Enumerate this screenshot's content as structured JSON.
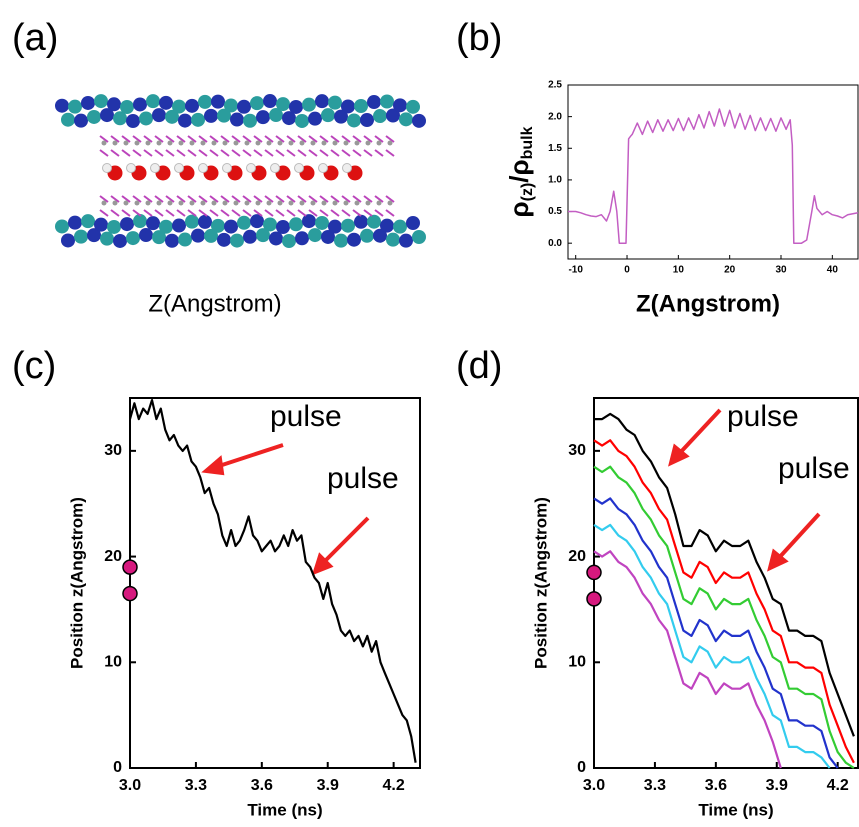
{
  "figure": {
    "panel_a": {
      "label": "(a)",
      "caption": "Z(Angstrom)"
    }
  },
  "chart_data": [
    {
      "type": "line",
      "panel_label": "(b)",
      "x_label": "Z(Angstrom)",
      "y_label": [
        "ρ",
        "(z)",
        "/ρ",
        "bulk"
      ],
      "color": "#c35ec3",
      "xlim": [
        -11.5,
        45
      ],
      "xticks": [
        -10,
        0,
        10,
        20,
        30,
        40
      ],
      "ylim": [
        -0.25,
        2.5
      ],
      "yticks": [
        {
          "value": 0,
          "label": "0.0"
        },
        0.5,
        {
          "value": 1,
          "label": "1.0"
        },
        1.5,
        {
          "value": 2,
          "label": "2.0"
        },
        2.5
      ],
      "x": [
        -11.5,
        -10,
        -9,
        -8,
        -7,
        -6,
        -5,
        -4,
        -3.3,
        -2.6,
        -2,
        -1.5,
        -0.2,
        0.3,
        0.8,
        1,
        2,
        3,
        4,
        5,
        6,
        7,
        8,
        9,
        10,
        11,
        12,
        13,
        14,
        15,
        16,
        17,
        18,
        19,
        20,
        21,
        22,
        23,
        24,
        25,
        26,
        27,
        28,
        29,
        30,
        31,
        31.8,
        32.2,
        32.5,
        34,
        35,
        36,
        36.5,
        37,
        38,
        39,
        40,
        41,
        42,
        43,
        45
      ],
      "values": [
        0.5,
        0.5,
        0.48,
        0.45,
        0.43,
        0.42,
        0.45,
        0.35,
        0.5,
        0.82,
        0.5,
        0,
        0,
        1.65,
        1.7,
        1.72,
        1.9,
        1.72,
        1.93,
        1.75,
        1.95,
        1.77,
        1.95,
        1.78,
        1.97,
        1.78,
        1.98,
        1.8,
        2.03,
        1.82,
        2.08,
        1.85,
        2.12,
        1.85,
        2.1,
        1.82,
        2.05,
        1.8,
        2.02,
        1.78,
        1.98,
        1.78,
        1.97,
        1.77,
        1.98,
        1.8,
        1.95,
        1.55,
        0,
        0,
        0.05,
        0.5,
        0.75,
        0.55,
        0.45,
        0.5,
        0.45,
        0.43,
        0.4,
        0.45,
        0.48
      ]
    },
    {
      "type": "line",
      "panel_label": "(c)",
      "x_label": "Time (ns)",
      "y_label": "Position z(Angstrom)",
      "color": "#000000",
      "xlim": [
        3,
        4.32
      ],
      "xticks": [
        {
          "value": 3,
          "label": "3.0"
        },
        3.3,
        3.6,
        3.9,
        4.2
      ],
      "ylim": [
        0,
        35
      ],
      "yticks": [
        0,
        10,
        20,
        30
      ],
      "markers": {
        "values": [
          19,
          16.5
        ],
        "color": "#d6197e"
      },
      "annotations": [
        "pulse",
        "pulse"
      ],
      "x": [
        3.0,
        3.02,
        3.04,
        3.06,
        3.08,
        3.1,
        3.12,
        3.14,
        3.16,
        3.18,
        3.2,
        3.22,
        3.24,
        3.26,
        3.28,
        3.3,
        3.32,
        3.34,
        3.36,
        3.38,
        3.4,
        3.42,
        3.44,
        3.46,
        3.48,
        3.5,
        3.52,
        3.54,
        3.56,
        3.58,
        3.6,
        3.62,
        3.64,
        3.66,
        3.68,
        3.7,
        3.72,
        3.74,
        3.76,
        3.78,
        3.8,
        3.82,
        3.84,
        3.86,
        3.88,
        3.9,
        3.92,
        3.94,
        3.96,
        3.98,
        4.0,
        4.02,
        4.04,
        4.06,
        4.08,
        4.1,
        4.12,
        4.14,
        4.16,
        4.18,
        4.2,
        4.22,
        4.24,
        4.26,
        4.28,
        4.3
      ],
      "values": [
        33,
        34.5,
        33,
        34,
        33.5,
        34.8,
        33,
        34,
        32,
        31,
        31.5,
        30.5,
        30,
        30.5,
        29,
        28.5,
        27.5,
        26,
        26.5,
        25,
        24,
        22,
        21,
        22.5,
        21,
        21.5,
        22.5,
        23.8,
        22,
        21.5,
        20.5,
        21,
        21.5,
        20.5,
        21,
        22,
        21,
        22.5,
        21.5,
        22,
        19.5,
        19,
        18,
        17.5,
        16,
        17.5,
        15.5,
        14.5,
        13,
        12.5,
        13,
        12,
        12.5,
        11.5,
        12.5,
        11,
        12,
        10,
        9,
        8,
        7,
        6,
        5,
        4.5,
        3,
        0.5
      ]
    },
    {
      "type": "line",
      "panel_label": "(d)",
      "x_label": "Time (ns)",
      "y_label": "Position z(Angstrom)",
      "xlim": [
        3,
        4.3
      ],
      "xticks": [
        {
          "value": 3,
          "label": "3.0"
        },
        3.3,
        3.6,
        3.9,
        4.2
      ],
      "ylim": [
        0,
        35
      ],
      "yticks": [
        0,
        10,
        20,
        30
      ],
      "markers": {
        "values": [
          18.5,
          16
        ],
        "color": "#d6197e"
      },
      "annotations": [
        "pulse",
        "pulse"
      ],
      "x": [
        3.0,
        3.04,
        3.08,
        3.12,
        3.16,
        3.2,
        3.24,
        3.28,
        3.32,
        3.36,
        3.4,
        3.44,
        3.48,
        3.52,
        3.56,
        3.6,
        3.64,
        3.68,
        3.72,
        3.76,
        3.8,
        3.84,
        3.88,
        3.92,
        3.96,
        4.0,
        4.04,
        4.08,
        4.12,
        4.16,
        4.2,
        4.24,
        4.28
      ],
      "series": [
        {
          "color": "#c044c0",
          "values": [
            20.5,
            20,
            20.5,
            19.5,
            19,
            18,
            16.5,
            15.5,
            14,
            13,
            10.5,
            8,
            7.5,
            9,
            8.5,
            7,
            8,
            7.5,
            7.5,
            8,
            6,
            4.5,
            2.5,
            0,
            null,
            null,
            null,
            null,
            null,
            null,
            null,
            null,
            null
          ]
        },
        {
          "color": "#33ccee",
          "values": [
            23,
            22.5,
            23,
            22,
            21.5,
            20.5,
            19,
            18,
            16.5,
            15.5,
            13,
            10.5,
            10,
            11.5,
            11,
            9.5,
            10.5,
            10,
            10,
            10.5,
            8.5,
            7,
            5,
            4.5,
            2,
            2,
            1.5,
            1.5,
            1,
            0,
            null,
            null,
            null
          ]
        },
        {
          "color": "#2233cc",
          "values": [
            25.5,
            25,
            25.5,
            24.5,
            24,
            23,
            21.5,
            20.5,
            19,
            18,
            15.5,
            13,
            12.5,
            14,
            13.5,
            12,
            13,
            12.5,
            12.5,
            13,
            11,
            9.5,
            7.5,
            7,
            4.5,
            4.5,
            4,
            4,
            3.5,
            1,
            0,
            null,
            null
          ]
        },
        {
          "color": "#33cc33",
          "values": [
            28.5,
            28,
            28.5,
            27.5,
            27,
            26,
            24.5,
            23.5,
            22,
            21,
            18.5,
            16,
            15.5,
            17,
            16.5,
            15,
            16,
            15.5,
            15.5,
            16,
            14,
            12.5,
            10.5,
            10,
            7.5,
            7.5,
            7,
            7,
            6.5,
            3.5,
            1.5,
            0.5,
            0
          ]
        },
        {
          "color": "#ff0000",
          "values": [
            31,
            30.5,
            31,
            30,
            29.5,
            28.5,
            27,
            26,
            24.5,
            23.5,
            21,
            18.5,
            18,
            19.5,
            19,
            17.5,
            18.5,
            18,
            18,
            18.5,
            16.5,
            15,
            13,
            12.5,
            10,
            10,
            9.5,
            9.5,
            9,
            6,
            4,
            2,
            0.5
          ]
        },
        {
          "color": "#000000",
          "values": [
            33,
            33,
            33.5,
            33,
            32,
            31.5,
            30,
            29,
            27.5,
            26.5,
            24,
            21,
            21,
            22.5,
            22,
            20.5,
            21.5,
            21,
            21,
            21.5,
            19.5,
            18,
            16,
            15.5,
            13,
            13,
            12.5,
            12.5,
            12,
            9,
            7,
            5,
            3
          ]
        }
      ]
    }
  ]
}
